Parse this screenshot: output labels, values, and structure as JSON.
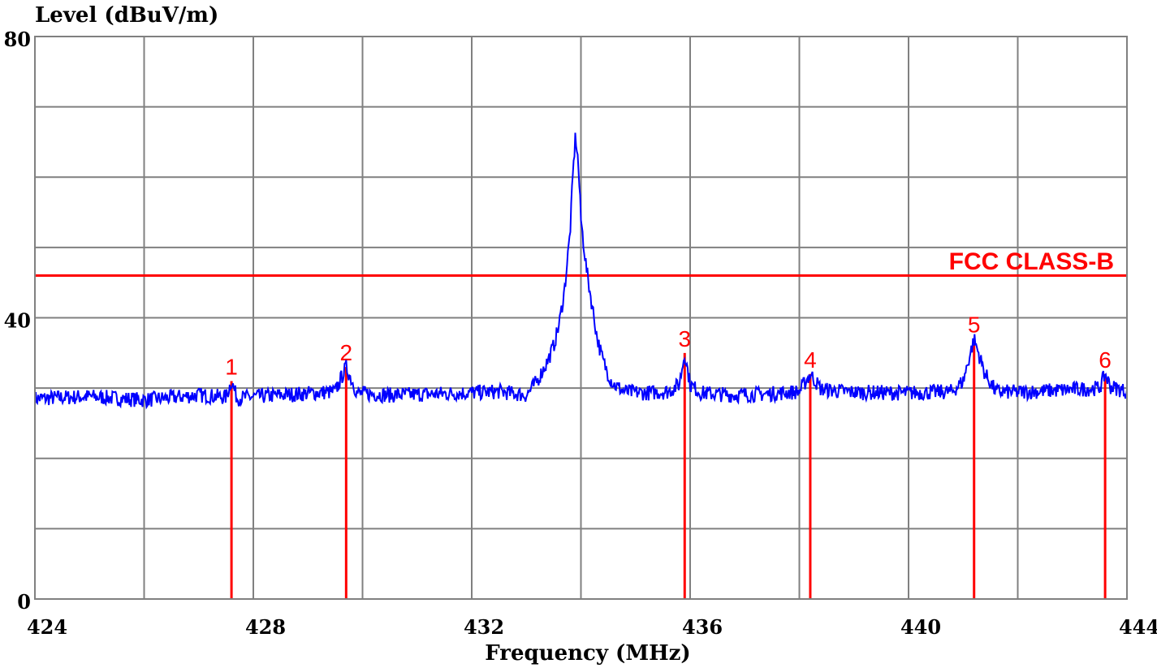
{
  "chart_data": {
    "type": "line",
    "xlabel": "Frequency (MHz)",
    "ylabel": "Level (dBuV/m)",
    "xlim": [
      424,
      444
    ],
    "ylim": [
      0,
      80
    ],
    "x_ticks": [
      424,
      428,
      432,
      436,
      440,
      444
    ],
    "x_tick_labels": [
      "424",
      "428",
      "432",
      "436",
      "440",
      "444"
    ],
    "y_ticks": [
      0,
      40,
      80
    ],
    "y_tick_labels": [
      "0",
      "40",
      "80"
    ],
    "grid": true,
    "grid_x_step": 2,
    "grid_y_step": 10,
    "colors": {
      "trace": "#0000ff",
      "limit": "#ff0000",
      "markers": "#ff0000",
      "grid": "#808080"
    },
    "limit_line": {
      "name": "FCC CLASS-B",
      "value": 46
    },
    "markers": [
      {
        "label": "1",
        "x": 427.6,
        "y": 31
      },
      {
        "label": "2",
        "x": 429.7,
        "y": 33
      },
      {
        "label": "3",
        "x": 435.9,
        "y": 35
      },
      {
        "label": "4",
        "x": 438.2,
        "y": 32
      },
      {
        "label": "5",
        "x": 441.2,
        "y": 37
      },
      {
        "label": "6",
        "x": 443.6,
        "y": 32
      }
    ],
    "series": [
      {
        "x": [
          424.0,
          425.0,
          426.0,
          427.0,
          427.5,
          427.6,
          427.7,
          428.5,
          429.5,
          429.7,
          429.9,
          430.5,
          431.5,
          432.5,
          433.0,
          433.2,
          433.4,
          433.5,
          433.6,
          433.7,
          433.8,
          433.85,
          433.9,
          433.95,
          434.0,
          434.1,
          434.2,
          434.3,
          434.4,
          434.5,
          434.6,
          434.8,
          435.2,
          435.6,
          435.8,
          435.9,
          436.0,
          436.2,
          436.8,
          437.5,
          438.0,
          438.2,
          438.4,
          439.0,
          440.0,
          440.8,
          441.0,
          441.2,
          441.4,
          441.6,
          442.0,
          442.5,
          443.0,
          443.5,
          443.6,
          443.7,
          444.0
        ],
        "y": [
          28.5,
          28.8,
          28.3,
          29.0,
          28.7,
          31.0,
          28.6,
          29.0,
          29.5,
          33.0,
          29.3,
          29.0,
          29.2,
          29.5,
          29.0,
          31.0,
          34.0,
          36.0,
          39.0,
          44.0,
          52.0,
          60.0,
          66.0,
          62.0,
          54.0,
          47.0,
          42.0,
          37.0,
          34.0,
          32.0,
          30.5,
          29.5,
          29.3,
          29.5,
          30.5,
          35.0,
          30.5,
          29.3,
          29.0,
          29.2,
          29.5,
          32.0,
          29.8,
          29.4,
          29.3,
          29.5,
          31.0,
          37.0,
          32.0,
          29.5,
          29.4,
          29.6,
          29.8,
          30.0,
          32.0,
          30.2,
          29.5
        ]
      }
    ]
  }
}
